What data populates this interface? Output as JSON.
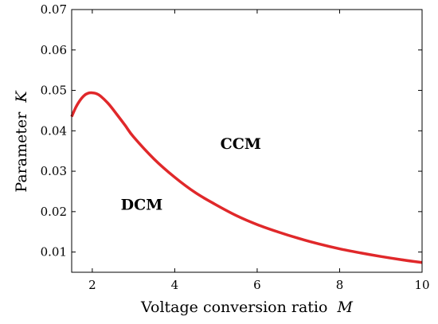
{
  "chart_data": {
    "type": "line",
    "xlabel": "Voltage conversion ratio",
    "xlabel_var": "M",
    "ylabel": "Parameter",
    "ylabel_var": "K",
    "xlim": [
      1.5,
      10
    ],
    "ylim": [
      0.005,
      0.07
    ],
    "xticks": [
      2,
      4,
      6,
      8,
      10
    ],
    "yticks": [
      0.01,
      0.02,
      0.03,
      0.04,
      0.05,
      0.06,
      0.07
    ],
    "xtick_labels": [
      "2",
      "4",
      "6",
      "8",
      "10"
    ],
    "ytick_labels": [
      "0.01",
      "0.02",
      "0.03",
      "0.04",
      "0.05",
      "0.06",
      "0.07"
    ],
    "grid": false,
    "series": [
      {
        "color": "#e0282a",
        "x": [
          1.5,
          1.6,
          1.7,
          1.8,
          1.9,
          2.0,
          2.1,
          2.2,
          2.4,
          2.6,
          2.8,
          3.0,
          3.5,
          4.0,
          4.5,
          5.0,
          5.5,
          6.0,
          6.5,
          7.0,
          7.5,
          8.0,
          8.5,
          9.0,
          9.5,
          10.0
        ],
        "y": [
          0.0435,
          0.0458,
          0.0475,
          0.0487,
          0.0493,
          0.0494,
          0.0492,
          0.0486,
          0.0466,
          0.044,
          0.0413,
          0.0385,
          0.033,
          0.0285,
          0.0247,
          0.0217,
          0.019,
          0.0168,
          0.015,
          0.0134,
          0.012,
          0.0108,
          0.0098,
          0.0089,
          0.0081,
          0.0074
        ]
      }
    ],
    "annotations": [
      {
        "text": "CCM",
        "x": 5.6,
        "y": 0.0355
      },
      {
        "text": "DCM",
        "x": 3.2,
        "y": 0.0205
      }
    ]
  }
}
